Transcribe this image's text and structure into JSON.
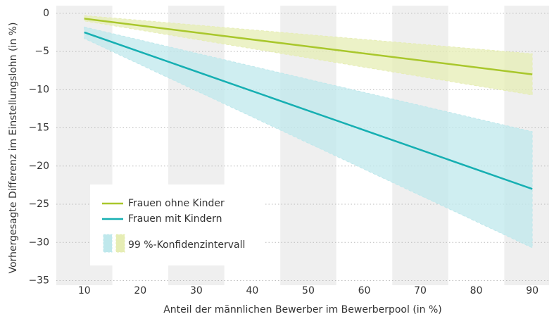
{
  "chart_data": {
    "type": "line-band",
    "x_label": "Anteil der männlichen Bewerber im Bewerberpool (in %)",
    "y_label": "Vorhergesagte Differenz im Einstellungslohn (in %)",
    "x": [
      10,
      50,
      90
    ],
    "series": [
      {
        "name": "Frauen ohne Kinder",
        "color": "#a9c72c",
        "band_color": "#e6edb4",
        "values": [
          -0.7,
          -4.35,
          -8.0
        ],
        "upper": [
          -0.3,
          -2.8,
          -5.3
        ],
        "lower": [
          -1.0,
          -5.85,
          -10.7
        ]
      },
      {
        "name": "Frauen mit Kindern",
        "color": "#16afb2",
        "band_color": "#bfe8ec",
        "values": [
          -2.5,
          -12.75,
          -23.0
        ],
        "upper": [
          -1.8,
          -8.65,
          -15.5
        ],
        "lower": [
          -3.3,
          -17.0,
          -30.7
        ]
      }
    ],
    "ci_label": "99 %-Konfidenzintervall",
    "xlim": [
      5,
      93
    ],
    "ylim": [
      -35.6,
      1
    ],
    "xticks": [
      10,
      20,
      30,
      40,
      50,
      60,
      70,
      80,
      90
    ],
    "yticks": [
      0,
      {
        "value": -5,
        "label": "−5"
      },
      {
        "value": -10,
        "label": "−10"
      },
      {
        "value": -15,
        "label": "−15"
      },
      {
        "value": -20,
        "label": "−20"
      },
      {
        "value": -25,
        "label": "−25"
      },
      {
        "value": -30,
        "label": "−30"
      },
      {
        "value": -35,
        "label": "−35"
      }
    ],
    "grid": true
  }
}
